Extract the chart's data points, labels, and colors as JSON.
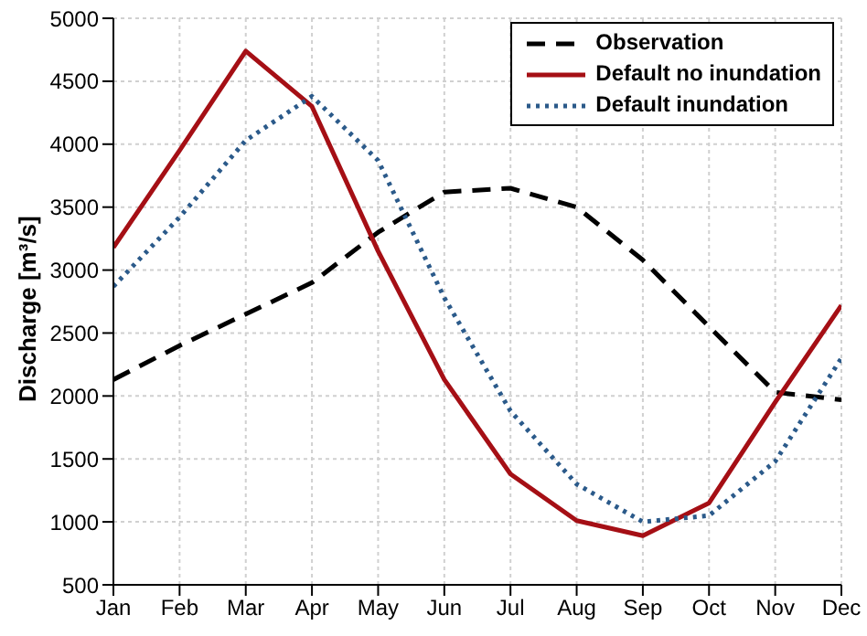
{
  "chart_data": {
    "type": "line",
    "ylabel": "Discharge [m³/s]",
    "categories": [
      "Jan",
      "Feb",
      "Mar",
      "Apr",
      "May",
      "Jun",
      "Jul",
      "Aug",
      "Sep",
      "Oct",
      "Nov",
      "Dec"
    ],
    "series": [
      {
        "name": "Observation",
        "color": "#000000",
        "line_style": "dashed",
        "values": [
          2130,
          2400,
          2650,
          2900,
          3300,
          3620,
          3650,
          3500,
          3080,
          2550,
          2030,
          1970
        ]
      },
      {
        "name": "Default no inundation",
        "color": "#a50f15",
        "line_style": "solid",
        "values": [
          3180,
          3950,
          4740,
          4300,
          3150,
          2130,
          1380,
          1010,
          890,
          1150,
          1950,
          2720
        ]
      },
      {
        "name": "Default inundation",
        "color": "#2b5a8a",
        "line_style": "dotted",
        "values": [
          2870,
          3420,
          4030,
          4380,
          3870,
          2780,
          1880,
          1300,
          1000,
          1050,
          1480,
          2300
        ]
      }
    ],
    "ylim": [
      500,
      5000
    ],
    "yticks": [
      500,
      1000,
      1500,
      2000,
      2500,
      3000,
      3500,
      4000,
      4500,
      5000
    ],
    "grid": true,
    "legend": "top right",
    "marker": "none"
  }
}
